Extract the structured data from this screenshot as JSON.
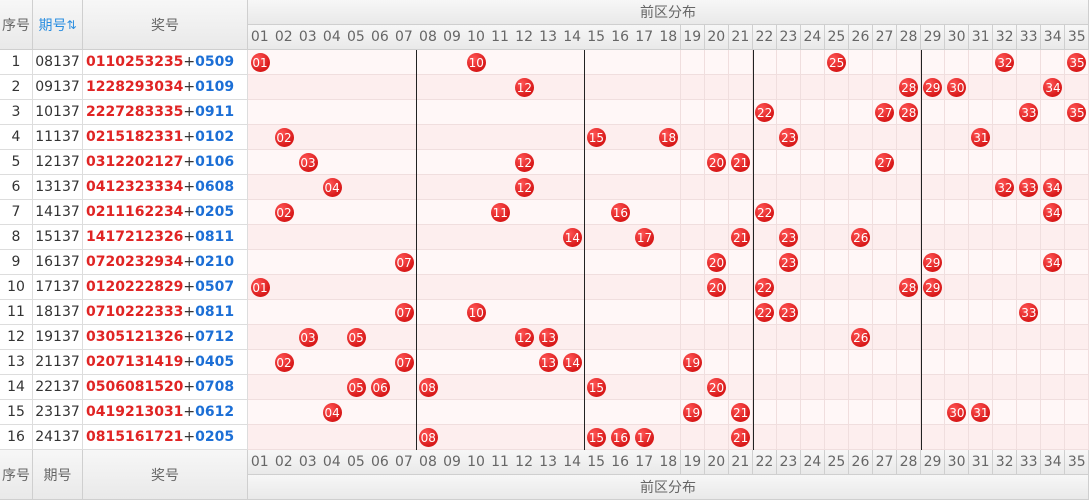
{
  "header": {
    "seq": "序号",
    "issue": "期号",
    "draw": "奖号",
    "zone": "前区分布",
    "columns": [
      "01",
      "02",
      "03",
      "04",
      "05",
      "06",
      "07",
      "08",
      "09",
      "10",
      "11",
      "12",
      "13",
      "14",
      "15",
      "16",
      "17",
      "18",
      "19",
      "20",
      "21",
      "22",
      "23",
      "24",
      "25",
      "26",
      "27",
      "28",
      "29",
      "30",
      "31",
      "32",
      "33",
      "34",
      "35"
    ]
  },
  "plus": "+",
  "rows": [
    {
      "seq": "1",
      "issue": "08137",
      "front": [
        "01",
        "10",
        "25",
        "32",
        "35"
      ],
      "back": [
        "05",
        "09"
      ]
    },
    {
      "seq": "2",
      "issue": "09137",
      "front": [
        "12",
        "28",
        "29",
        "30",
        "34"
      ],
      "back": [
        "01",
        "09"
      ]
    },
    {
      "seq": "3",
      "issue": "10137",
      "front": [
        "22",
        "27",
        "28",
        "33",
        "35"
      ],
      "back": [
        "09",
        "11"
      ]
    },
    {
      "seq": "4",
      "issue": "11137",
      "front": [
        "02",
        "15",
        "18",
        "23",
        "31"
      ],
      "back": [
        "01",
        "02"
      ]
    },
    {
      "seq": "5",
      "issue": "12137",
      "front": [
        "03",
        "12",
        "20",
        "21",
        "27"
      ],
      "back": [
        "01",
        "06"
      ]
    },
    {
      "seq": "6",
      "issue": "13137",
      "front": [
        "04",
        "12",
        "32",
        "33",
        "34"
      ],
      "back": [
        "06",
        "08"
      ]
    },
    {
      "seq": "7",
      "issue": "14137",
      "front": [
        "02",
        "11",
        "16",
        "22",
        "34"
      ],
      "back": [
        "02",
        "05"
      ]
    },
    {
      "seq": "8",
      "issue": "15137",
      "front": [
        "14",
        "17",
        "21",
        "23",
        "26"
      ],
      "back": [
        "08",
        "11"
      ]
    },
    {
      "seq": "9",
      "issue": "16137",
      "front": [
        "07",
        "20",
        "23",
        "29",
        "34"
      ],
      "back": [
        "02",
        "10"
      ]
    },
    {
      "seq": "10",
      "issue": "17137",
      "front": [
        "01",
        "20",
        "22",
        "28",
        "29"
      ],
      "back": [
        "05",
        "07"
      ]
    },
    {
      "seq": "11",
      "issue": "18137",
      "front": [
        "07",
        "10",
        "22",
        "23",
        "33"
      ],
      "back": [
        "08",
        "11"
      ]
    },
    {
      "seq": "12",
      "issue": "19137",
      "front": [
        "03",
        "05",
        "12",
        "13",
        "26"
      ],
      "back": [
        "07",
        "12"
      ]
    },
    {
      "seq": "13",
      "issue": "21137",
      "front": [
        "02",
        "07",
        "13",
        "14",
        "19"
      ],
      "back": [
        "04",
        "05"
      ]
    },
    {
      "seq": "14",
      "issue": "22137",
      "front": [
        "05",
        "06",
        "08",
        "15",
        "20"
      ],
      "back": [
        "07",
        "08"
      ]
    },
    {
      "seq": "15",
      "issue": "23137",
      "front": [
        "04",
        "19",
        "21",
        "30",
        "31"
      ],
      "back": [
        "06",
        "12"
      ]
    },
    {
      "seq": "16",
      "issue": "24137",
      "front": [
        "08",
        "15",
        "16",
        "17",
        "21"
      ],
      "back": [
        "02",
        "05"
      ]
    }
  ],
  "footer": {
    "seq": "序号",
    "issue": "期号",
    "draw": "奖号",
    "zone": "前区分布"
  }
}
